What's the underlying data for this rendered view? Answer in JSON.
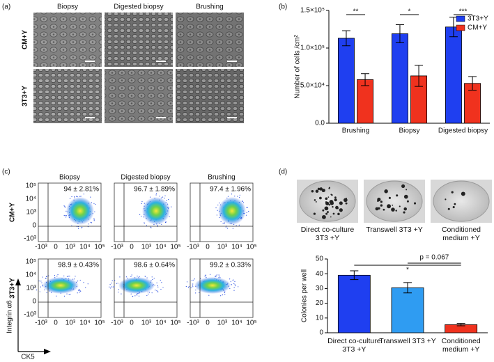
{
  "panel_labels": [
    "(a)",
    "(b)",
    "(c)",
    "(d)"
  ],
  "panel_a": {
    "columns": [
      "Biopsy",
      "Digested biopsy",
      "Brushing"
    ],
    "rows": [
      "CM+Y",
      "3T3+Y"
    ]
  },
  "panel_c": {
    "columns": [
      "Biopsy",
      "Digested biopsy",
      "Brushing"
    ],
    "rows": [
      "CM+Y",
      "3T3+Y"
    ],
    "axis_ticks": [
      "-10³",
      "0",
      "10³",
      "10⁴",
      "10⁵"
    ],
    "y_axis_label": "Integrin α6",
    "x_axis_label": "CK5",
    "percentages": [
      [
        "94 ± 2.81%",
        "96.7 ± 1.89%",
        "97.4 ± 1.96%"
      ],
      [
        "98.9 ± 0.43%",
        "98.6 ± 0.64%",
        "99.2 ± 0.33%"
      ]
    ]
  },
  "chart_data": [
    {
      "type": "bar",
      "y_label": "Number of cells /cm²",
      "categories": [
        "Brushing",
        "Biopsy",
        "Digested biopsy"
      ],
      "series": [
        {
          "name": "3T3+Y",
          "color": "#1f3ff0",
          "values": [
            113000,
            119000,
            128000
          ],
          "errors": [
            10000,
            12000,
            13000
          ]
        },
        {
          "name": "CM+Y",
          "color": "#f0321e",
          "values": [
            58000,
            63000,
            53000
          ],
          "errors": [
            8000,
            14000,
            9000
          ]
        }
      ],
      "ylim": [
        0,
        150000
      ],
      "yticks": [
        {
          "value": 0,
          "label": "0.0"
        },
        {
          "value": 50000,
          "label": "5.0×10⁴"
        },
        {
          "value": 100000,
          "label": "1.0×10⁵"
        },
        {
          "value": 150000,
          "label": "1.5×10⁵"
        }
      ],
      "annotations": [
        "**",
        "*",
        "***"
      ],
      "legend": "top-right"
    },
    {
      "type": "bar",
      "y_label": "Colonies per well",
      "categories": [
        "Direct co-culture 3T3 +Y",
        "Transwell 3T3 +Y",
        "Conditioned medium +Y"
      ],
      "values": [
        39,
        30.5,
        5.5
      ],
      "errors": [
        3,
        3.5,
        0.8
      ],
      "colors": [
        "#1f3ff0",
        "#2f9cf2",
        "#f0321e"
      ],
      "ylim": [
        0,
        50
      ],
      "yticks": [
        0,
        10,
        20,
        30,
        40,
        50
      ],
      "annotations": [
        "p = 0.067",
        "*"
      ]
    }
  ]
}
